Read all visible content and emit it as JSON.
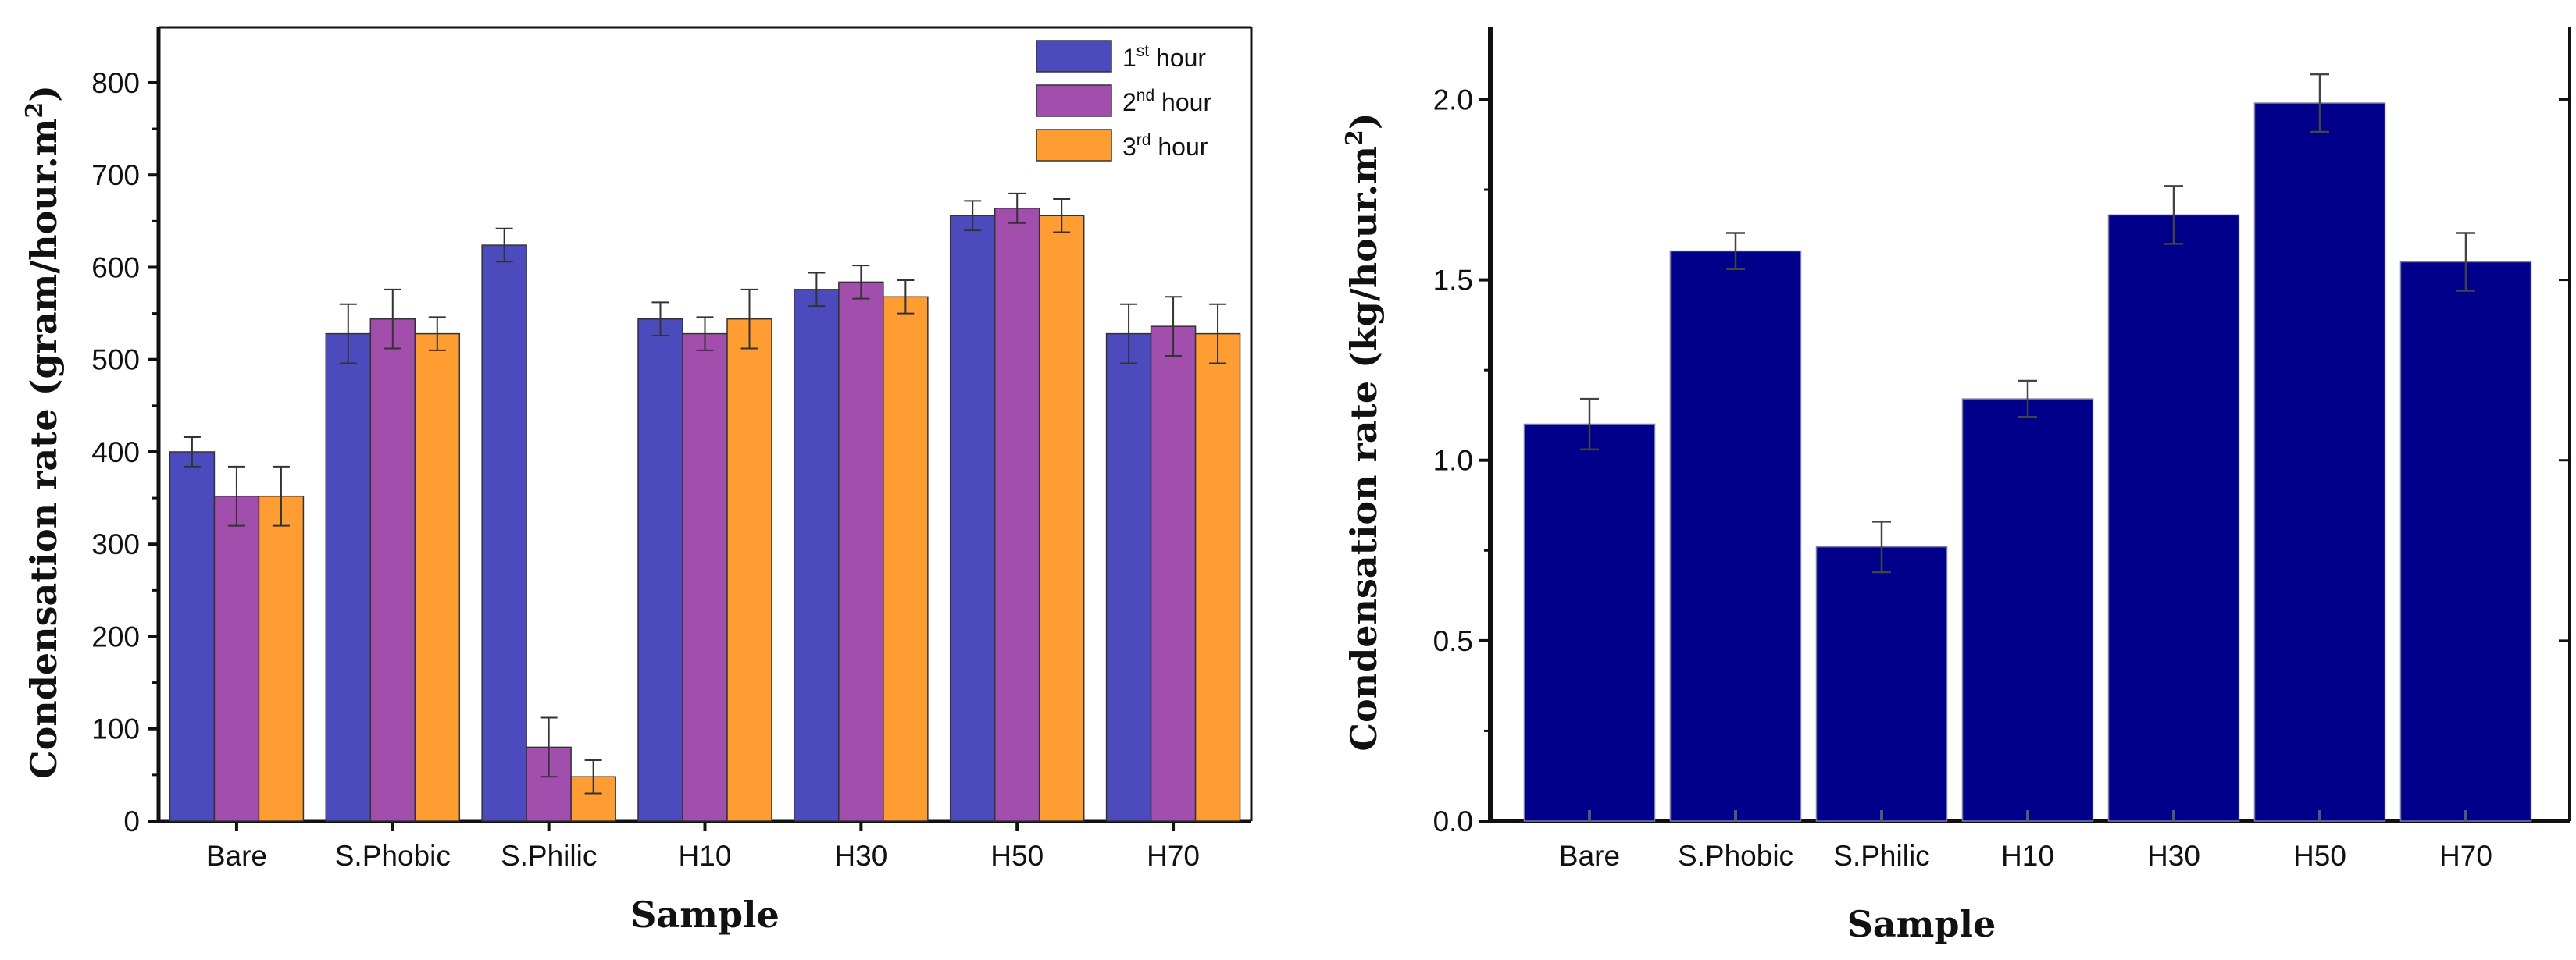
{
  "chart_data": [
    {
      "type": "bar",
      "title": "",
      "xlabel": "Sample",
      "ylabel": "Condensation rate (gram/hour.m",
      "ylabel_sup": "2",
      "ylabel_close": ")",
      "ylim": [
        0,
        860
      ],
      "yticks": [
        0,
        100,
        200,
        300,
        400,
        500,
        600,
        700,
        800
      ],
      "grid": false,
      "legend_position": "top-right",
      "categories": [
        "Bare",
        "S.Phobic",
        "S.Philic",
        "H10",
        "H30",
        "H50",
        "H70"
      ],
      "series": [
        {
          "name": "1st hour",
          "label_lead": "1",
          "label_sup": "st",
          "label_tail": " hour",
          "color": "#4b4bbd",
          "values": [
            400,
            528,
            624,
            544,
            576,
            656,
            528
          ],
          "errors": [
            16,
            32,
            18,
            18,
            18,
            16,
            32
          ]
        },
        {
          "name": "2nd hour",
          "label_lead": "2",
          "label_sup": "nd",
          "label_tail": " hour",
          "color": "#a24eac",
          "values": [
            352,
            544,
            80,
            528,
            584,
            664,
            536
          ],
          "errors": [
            32,
            32,
            32,
            18,
            18,
            16,
            32
          ]
        },
        {
          "name": "3rd hour",
          "label_lead": "3",
          "label_sup": "rd",
          "label_tail": " hour",
          "color": "#ff9d33",
          "values": [
            352,
            528,
            48,
            544,
            568,
            656,
            528
          ],
          "errors": [
            32,
            18,
            18,
            32,
            18,
            18,
            32
          ]
        }
      ]
    },
    {
      "type": "bar",
      "title": "",
      "xlabel": "Sample",
      "ylabel": "Condensation rate (kg/hour.m",
      "ylabel_sup": "2",
      "ylabel_close": ")",
      "ylim": [
        0,
        2.2
      ],
      "yticks": [
        "0.0",
        "0.5",
        "1.0",
        "1.5",
        "2.0"
      ],
      "grid": false,
      "categories": [
        "Bare",
        "S.Phobic",
        "S.Philic",
        "H10",
        "H30",
        "H50",
        "H70"
      ],
      "series": [
        {
          "name": "Condensation rate",
          "color": "#00008b",
          "values": [
            1.1,
            1.58,
            0.76,
            1.17,
            1.68,
            1.99,
            1.55
          ],
          "errors": [
            0.07,
            0.05,
            0.07,
            0.05,
            0.08,
            0.08,
            0.08
          ]
        }
      ]
    }
  ]
}
